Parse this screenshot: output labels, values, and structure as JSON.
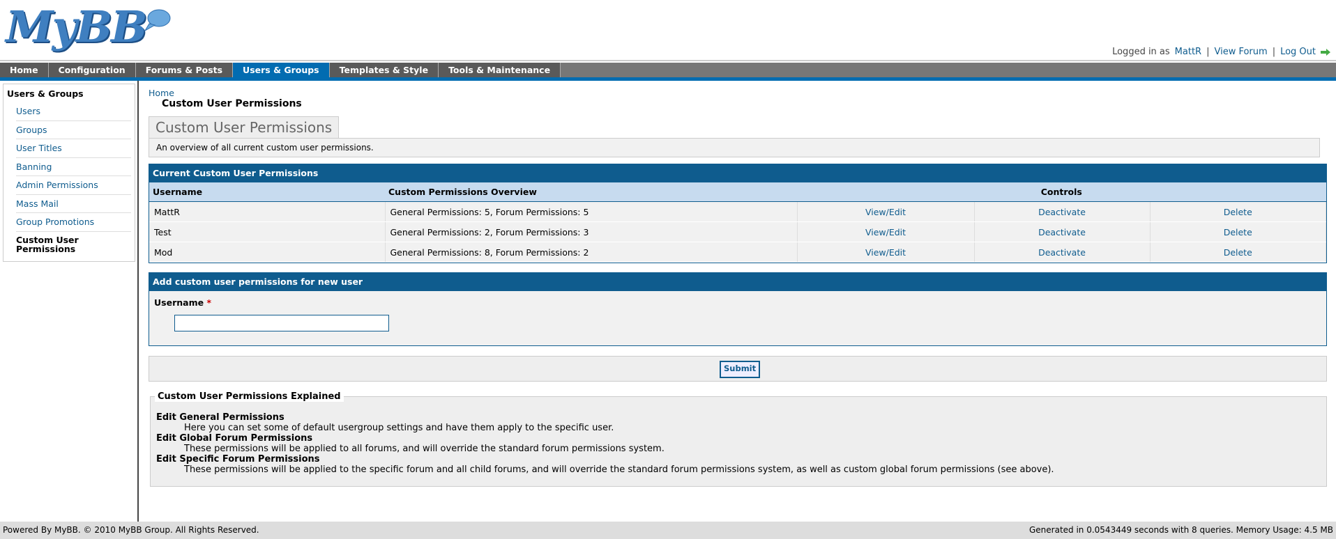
{
  "header": {
    "logo": "MyBB",
    "logged_in_as": "Logged in as",
    "user": "MattR",
    "separator": "|",
    "view_forum": "View Forum",
    "log_out": "Log Out"
  },
  "nav": [
    "Home",
    "Configuration",
    "Forums & Posts",
    "Users & Groups",
    "Templates & Style",
    "Tools & Maintenance"
  ],
  "nav_active": 3,
  "sidebar": {
    "title": "Users & Groups",
    "items": [
      "Users",
      "Groups",
      "User Titles",
      "Banning",
      "Admin Permissions",
      "Mass Mail",
      "Group Promotions",
      "Custom User Permissions"
    ],
    "active": 7
  },
  "breadcrumb": {
    "home": "Home",
    "current": "Custom User Permissions"
  },
  "page": {
    "tab": "Custom User Permissions",
    "description": "An overview of all current custom user permissions."
  },
  "table": {
    "title": "Current Custom User Permissions",
    "headers": [
      "Username",
      "Custom Permissions Overview",
      "Controls"
    ],
    "rows": [
      [
        "MattR",
        "General Permissions: 5, Forum Permissions: 5",
        "View/Edit",
        "Deactivate",
        "Delete"
      ],
      [
        "Test",
        "General Permissions: 2, Forum Permissions: 3",
        "View/Edit",
        "Deactivate",
        "Delete"
      ],
      [
        "Mod",
        "General Permissions: 8, Forum Permissions: 2",
        "View/Edit",
        "Deactivate",
        "Delete"
      ]
    ]
  },
  "form": {
    "title": "Add custom user permissions for new user",
    "label": "Username",
    "required_mark": "*",
    "submit": "Submit"
  },
  "explained": {
    "legend": "Custom User Permissions Explained",
    "items": [
      {
        "term": "Edit General Permissions",
        "text": "Here you can set some of default usergroup settings and have them apply to the specific user."
      },
      {
        "term": "Edit Global Forum Permissions",
        "text": "These permissions will be applied to all forums, and will override the standard forum permissions system."
      },
      {
        "term": "Edit Specific Forum Permissions",
        "text": "These permissions will be applied to the specific forum and all child forums, and will override the standard forum permissions system, as well as custom global forum permissions (see above)."
      }
    ]
  },
  "footer": {
    "left": "Powered By MyBB. © 2010 MyBB Group. All Rights Reserved.",
    "right": "Generated in 0.0543449 seconds with 8 queries. Memory Usage: 4.5 MB"
  }
}
